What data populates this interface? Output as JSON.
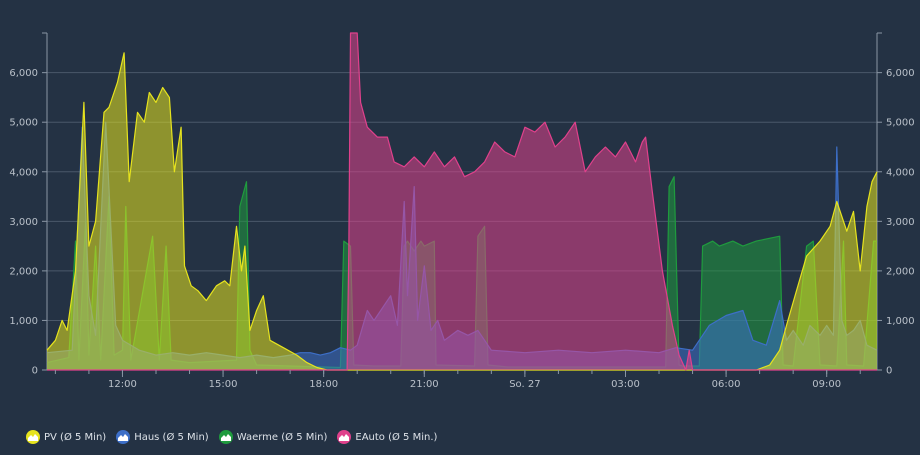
{
  "chart_data": {
    "type": "area",
    "title": "",
    "xlabel": "",
    "ylabel": "",
    "ylim": [
      0,
      6800
    ],
    "y_ticks": [
      "0",
      "1,000",
      "2,000",
      "3,000",
      "4,000",
      "5,000",
      "6,000"
    ],
    "y_tick_values": [
      0,
      1000,
      2000,
      3000,
      4000,
      5000,
      6000
    ],
    "x_unit": "hours since 00:00 (Sa.)",
    "xlim": [
      9.75,
      34.5
    ],
    "x_ticks": [
      {
        "label": "12:00",
        "x": 12
      },
      {
        "label": "15:00",
        "x": 15
      },
      {
        "label": "18:00",
        "x": 18
      },
      {
        "label": "21:00",
        "x": 21
      },
      {
        "label": "So. 27",
        "x": 24
      },
      {
        "label": "03:00",
        "x": 27
      },
      {
        "label": "06:00",
        "x": 30
      },
      {
        "label": "09:00",
        "x": 33
      }
    ],
    "grid": true,
    "legend_position": "bottom-left",
    "series": [
      {
        "name": "Waerme (Ø 5 Min)",
        "color": "#1f9b3e",
        "points": [
          [
            9.75,
            150
          ],
          [
            10.4,
            250
          ],
          [
            10.6,
            2600
          ],
          [
            10.7,
            200
          ],
          [
            10.9,
            3000
          ],
          [
            11.0,
            300
          ],
          [
            11.2,
            2500
          ],
          [
            11.35,
            200
          ],
          [
            11.6,
            3500
          ],
          [
            11.75,
            300
          ],
          [
            12.0,
            400
          ],
          [
            12.1,
            3300
          ],
          [
            12.25,
            200
          ],
          [
            12.9,
            2700
          ],
          [
            13.1,
            200
          ],
          [
            13.3,
            2500
          ],
          [
            13.45,
            200
          ],
          [
            14.0,
            150
          ],
          [
            15.4,
            200
          ],
          [
            15.5,
            3300
          ],
          [
            15.7,
            3800
          ],
          [
            15.8,
            400
          ],
          [
            16.0,
            100
          ],
          [
            17.0,
            80
          ],
          [
            18.5,
            50
          ],
          [
            18.6,
            2600
          ],
          [
            18.8,
            2500
          ],
          [
            18.9,
            100
          ],
          [
            19.5,
            80
          ],
          [
            20.3,
            80
          ],
          [
            20.4,
            2500
          ],
          [
            20.5,
            2600
          ],
          [
            20.7,
            2400
          ],
          [
            20.9,
            2600
          ],
          [
            21.0,
            2500
          ],
          [
            21.3,
            2600
          ],
          [
            21.35,
            100
          ],
          [
            22.5,
            80
          ],
          [
            22.6,
            2700
          ],
          [
            22.8,
            2900
          ],
          [
            22.9,
            100
          ],
          [
            23.5,
            60
          ],
          [
            24.5,
            60
          ],
          [
            27.5,
            60
          ],
          [
            28.2,
            60
          ],
          [
            28.3,
            3700
          ],
          [
            28.45,
            3900
          ],
          [
            28.6,
            100
          ],
          [
            28.7,
            80
          ],
          [
            29.2,
            80
          ],
          [
            29.3,
            2500
          ],
          [
            29.6,
            2600
          ],
          [
            29.8,
            2500
          ],
          [
            30.2,
            2600
          ],
          [
            30.5,
            2500
          ],
          [
            30.9,
            2600
          ],
          [
            31.6,
            2700
          ],
          [
            31.7,
            100
          ],
          [
            32.0,
            80
          ],
          [
            32.4,
            2500
          ],
          [
            32.6,
            2600
          ],
          [
            32.8,
            100
          ],
          [
            33.3,
            80
          ],
          [
            33.5,
            2600
          ],
          [
            33.6,
            100
          ],
          [
            34.1,
            80
          ],
          [
            34.4,
            2600
          ],
          [
            34.5,
            2600
          ]
        ]
      },
      {
        "name": "Haus (Ø 5 Min)",
        "color": "#3d6fc8",
        "points": [
          [
            9.75,
            350
          ],
          [
            10.5,
            400
          ],
          [
            10.8,
            4900
          ],
          [
            11.0,
            1500
          ],
          [
            11.2,
            700
          ],
          [
            11.5,
            5000
          ],
          [
            11.8,
            900
          ],
          [
            12.0,
            600
          ],
          [
            12.5,
            400
          ],
          [
            13.0,
            300
          ],
          [
            13.5,
            350
          ],
          [
            14.0,
            300
          ],
          [
            14.5,
            350
          ],
          [
            15.0,
            300
          ],
          [
            15.5,
            250
          ],
          [
            16.0,
            300
          ],
          [
            16.5,
            250
          ],
          [
            17.0,
            300
          ],
          [
            17.3,
            350
          ],
          [
            17.6,
            350
          ],
          [
            17.9,
            300
          ],
          [
            18.2,
            350
          ],
          [
            18.5,
            450
          ],
          [
            18.8,
            400
          ],
          [
            19.0,
            500
          ],
          [
            19.3,
            1200
          ],
          [
            19.5,
            1000
          ],
          [
            19.8,
            1300
          ],
          [
            20.0,
            1500
          ],
          [
            20.2,
            900
          ],
          [
            20.4,
            3400
          ],
          [
            20.5,
            1500
          ],
          [
            20.7,
            3700
          ],
          [
            20.8,
            1000
          ],
          [
            21.0,
            2100
          ],
          [
            21.2,
            800
          ],
          [
            21.4,
            1000
          ],
          [
            21.6,
            600
          ],
          [
            22.0,
            800
          ],
          [
            22.3,
            700
          ],
          [
            22.6,
            800
          ],
          [
            23.0,
            400
          ],
          [
            24.0,
            350
          ],
          [
            25.0,
            400
          ],
          [
            26.0,
            350
          ],
          [
            27.0,
            400
          ],
          [
            28.0,
            350
          ],
          [
            28.5,
            450
          ],
          [
            29.0,
            400
          ],
          [
            29.5,
            900
          ],
          [
            30.0,
            1100
          ],
          [
            30.5,
            1200
          ],
          [
            30.8,
            600
          ],
          [
            31.2,
            500
          ],
          [
            31.6,
            1400
          ],
          [
            31.8,
            600
          ],
          [
            32.0,
            800
          ],
          [
            32.3,
            500
          ],
          [
            32.5,
            900
          ],
          [
            32.8,
            700
          ],
          [
            33.0,
            900
          ],
          [
            33.2,
            700
          ],
          [
            33.3,
            4500
          ],
          [
            33.45,
            1000
          ],
          [
            33.6,
            700
          ],
          [
            33.8,
            800
          ],
          [
            34.0,
            1000
          ],
          [
            34.2,
            500
          ],
          [
            34.5,
            400
          ]
        ]
      },
      {
        "name": "PV (Ø 5 Min)",
        "color": "#e6e31e",
        "points": [
          [
            9.75,
            400
          ],
          [
            10.0,
            600
          ],
          [
            10.2,
            1000
          ],
          [
            10.35,
            800
          ],
          [
            10.6,
            2000
          ],
          [
            10.85,
            5400
          ],
          [
            11.0,
            2500
          ],
          [
            11.2,
            3000
          ],
          [
            11.45,
            5200
          ],
          [
            11.6,
            5300
          ],
          [
            11.85,
            5800
          ],
          [
            12.05,
            6400
          ],
          [
            12.2,
            3800
          ],
          [
            12.45,
            5200
          ],
          [
            12.65,
            5000
          ],
          [
            12.8,
            5600
          ],
          [
            13.0,
            5400
          ],
          [
            13.2,
            5700
          ],
          [
            13.4,
            5500
          ],
          [
            13.55,
            4000
          ],
          [
            13.75,
            4900
          ],
          [
            13.85,
            2100
          ],
          [
            14.05,
            1700
          ],
          [
            14.25,
            1600
          ],
          [
            14.5,
            1400
          ],
          [
            14.8,
            1700
          ],
          [
            15.05,
            1800
          ],
          [
            15.2,
            1700
          ],
          [
            15.4,
            2900
          ],
          [
            15.55,
            2000
          ],
          [
            15.65,
            2500
          ],
          [
            15.8,
            800
          ],
          [
            16.0,
            1200
          ],
          [
            16.2,
            1500
          ],
          [
            16.4,
            600
          ],
          [
            16.8,
            450
          ],
          [
            17.2,
            300
          ],
          [
            17.5,
            150
          ],
          [
            17.8,
            50
          ],
          [
            18.1,
            0
          ],
          [
            30.9,
            0
          ],
          [
            31.3,
            100
          ],
          [
            31.6,
            400
          ],
          [
            31.8,
            900
          ],
          [
            32.1,
            1600
          ],
          [
            32.4,
            2300
          ],
          [
            32.8,
            2600
          ],
          [
            33.1,
            2900
          ],
          [
            33.3,
            3400
          ],
          [
            33.6,
            2800
          ],
          [
            33.8,
            3200
          ],
          [
            34.0,
            2000
          ],
          [
            34.2,
            3300
          ],
          [
            34.35,
            3800
          ],
          [
            34.5,
            4000
          ]
        ]
      },
      {
        "name": "EAuto (Ø 5 Min.)",
        "color": "#e0418c",
        "points": [
          [
            9.75,
            0
          ],
          [
            18.7,
            0
          ],
          [
            18.75,
            2400
          ],
          [
            18.8,
            6800
          ],
          [
            19.0,
            6800
          ],
          [
            19.1,
            5400
          ],
          [
            19.3,
            4900
          ],
          [
            19.6,
            4700
          ],
          [
            19.9,
            4700
          ],
          [
            20.1,
            4200
          ],
          [
            20.4,
            4100
          ],
          [
            20.7,
            4300
          ],
          [
            21.0,
            4100
          ],
          [
            21.3,
            4400
          ],
          [
            21.6,
            4100
          ],
          [
            21.9,
            4300
          ],
          [
            22.2,
            3900
          ],
          [
            22.5,
            4000
          ],
          [
            22.8,
            4200
          ],
          [
            23.1,
            4600
          ],
          [
            23.4,
            4400
          ],
          [
            23.7,
            4300
          ],
          [
            24.0,
            4900
          ],
          [
            24.3,
            4800
          ],
          [
            24.6,
            5000
          ],
          [
            24.9,
            4500
          ],
          [
            25.2,
            4700
          ],
          [
            25.5,
            5000
          ],
          [
            25.8,
            4000
          ],
          [
            26.1,
            4300
          ],
          [
            26.4,
            4500
          ],
          [
            26.7,
            4300
          ],
          [
            27.0,
            4600
          ],
          [
            27.3,
            4200
          ],
          [
            27.5,
            4600
          ],
          [
            27.6,
            4700
          ],
          [
            27.8,
            3600
          ],
          [
            28.1,
            2000
          ],
          [
            28.4,
            900
          ],
          [
            28.6,
            300
          ],
          [
            28.8,
            0
          ],
          [
            28.9,
            400
          ],
          [
            29.0,
            0
          ],
          [
            34.5,
            0
          ]
        ]
      }
    ]
  }
}
